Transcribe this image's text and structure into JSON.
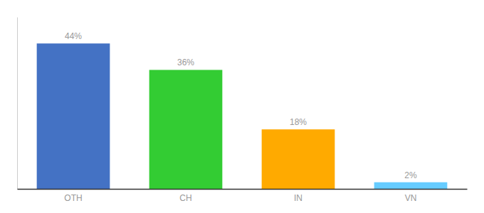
{
  "chart_data": {
    "type": "bar",
    "categories": [
      "OTH",
      "CH",
      "IN",
      "VN"
    ],
    "values": [
      44,
      36,
      18,
      2
    ],
    "value_labels": [
      "44%",
      "36%",
      "18%",
      "2%"
    ],
    "data_labels": true,
    "colors": [
      "#4472c4",
      "#33cc33",
      "#ffaa00",
      "#66ccff"
    ],
    "ylim": [
      0,
      52
    ],
    "tick_labels": "x"
  }
}
